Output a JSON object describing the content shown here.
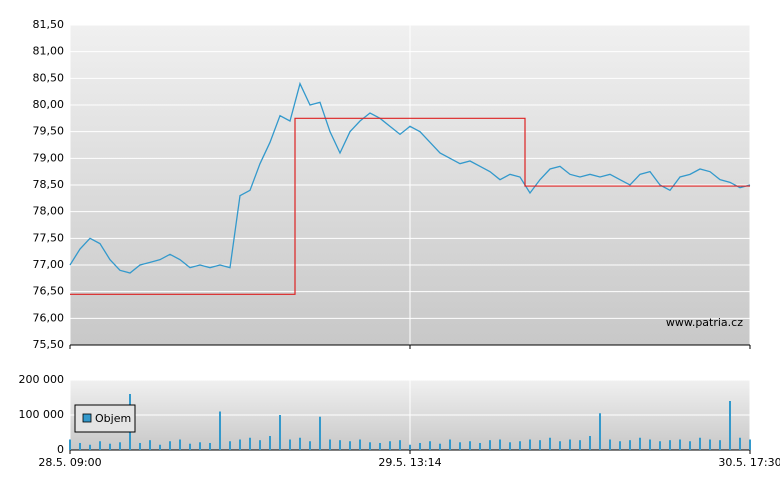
{
  "chart_data": [
    {
      "type": "line",
      "annotation": "www.patria.cz",
      "x": [
        0,
        1,
        2,
        3,
        4,
        5,
        6,
        7,
        8,
        9,
        10,
        11,
        12,
        13,
        14,
        15,
        16,
        17,
        18,
        19,
        20,
        21,
        22,
        23,
        24,
        25,
        26,
        27,
        28,
        29,
        30,
        31,
        32,
        33,
        34,
        35,
        36,
        37,
        38,
        39,
        40,
        41,
        42,
        43,
        44,
        45,
        46,
        47,
        48,
        49,
        50,
        51,
        52,
        53,
        54,
        55,
        56,
        57,
        58,
        59,
        60,
        61,
        62,
        63,
        64,
        65,
        66,
        67,
        68
      ],
      "xlim": [
        0,
        68
      ],
      "xticks": [
        0,
        34,
        68
      ],
      "ylim": [
        75.5,
        81.5
      ],
      "yticks": [
        {
          "value": 75.5,
          "label": "75,50"
        },
        {
          "value": 76,
          "label": "76,00"
        },
        {
          "value": 76.5,
          "label": "76,50"
        },
        {
          "value": 77,
          "label": "77,00"
        },
        {
          "value": 77.5,
          "label": "77,50"
        },
        {
          "value": 78,
          "label": "78,00"
        },
        {
          "value": 78.5,
          "label": "78,50"
        },
        {
          "value": 79,
          "label": "79,00"
        },
        {
          "value": 79.5,
          "label": "79,50"
        },
        {
          "value": 80,
          "label": "80,00"
        },
        {
          "value": 80.5,
          "label": "80,50"
        },
        {
          "value": 81,
          "label": "81,00"
        },
        {
          "value": 81.5,
          "label": "81,50"
        }
      ],
      "grid": true,
      "series": [
        {
          "color": "#3399cc",
          "step": false,
          "values": [
            77.0,
            77.3,
            77.5,
            77.4,
            77.1,
            76.9,
            76.85,
            77.0,
            77.05,
            77.1,
            77.2,
            77.1,
            76.95,
            77.0,
            76.95,
            77.0,
            76.95,
            78.3,
            78.4,
            78.9,
            79.3,
            79.8,
            79.7,
            80.4,
            80.0,
            80.05,
            79.5,
            79.1,
            79.5,
            79.7,
            79.85,
            79.75,
            79.6,
            79.45,
            79.6,
            79.5,
            79.3,
            79.1,
            79.0,
            78.9,
            78.95,
            78.85,
            78.75,
            78.6,
            78.7,
            78.65,
            78.35,
            78.6,
            78.8,
            78.85,
            78.7,
            78.65,
            78.7,
            78.65,
            78.7,
            78.6,
            78.5,
            78.7,
            78.75,
            78.5,
            78.4,
            78.65,
            78.7,
            78.8,
            78.75,
            78.6,
            78.55,
            78.45,
            78.5
          ]
        },
        {
          "color": "#dd2222",
          "step": true,
          "values": [
            76.45,
            76.45,
            76.45,
            76.45,
            76.45,
            76.45,
            76.45,
            76.45,
            76.45,
            76.45,
            76.45,
            76.45,
            76.45,
            76.45,
            76.45,
            76.45,
            76.45,
            76.45,
            76.45,
            76.45,
            76.45,
            76.45,
            76.45,
            79.75,
            79.75,
            79.75,
            79.75,
            79.75,
            79.75,
            79.75,
            79.75,
            79.75,
            79.75,
            79.75,
            79.75,
            79.75,
            79.75,
            79.75,
            79.75,
            79.75,
            79.75,
            79.75,
            79.75,
            79.75,
            79.75,
            79.75,
            78.48,
            78.48,
            78.48,
            78.48,
            78.48,
            78.48,
            78.48,
            78.48,
            78.48,
            78.48,
            78.48,
            78.48,
            78.48,
            78.48,
            78.48,
            78.48,
            78.48,
            78.48,
            78.48,
            78.48,
            78.48,
            78.48,
            78.48
          ]
        }
      ]
    },
    {
      "type": "bar",
      "x": [
        0,
        1,
        2,
        3,
        4,
        5,
        6,
        7,
        8,
        9,
        10,
        11,
        12,
        13,
        14,
        15,
        16,
        17,
        18,
        19,
        20,
        21,
        22,
        23,
        24,
        25,
        26,
        27,
        28,
        29,
        30,
        31,
        32,
        33,
        34,
        35,
        36,
        37,
        38,
        39,
        40,
        41,
        42,
        43,
        44,
        45,
        46,
        47,
        48,
        49,
        50,
        51,
        52,
        53,
        54,
        55,
        56,
        57,
        58,
        59,
        60,
        61,
        62,
        63,
        64,
        65,
        66,
        67,
        68
      ],
      "xlim": [
        0,
        68
      ],
      "xticks": [
        {
          "value": 0,
          "label": "28.5. 09:00"
        },
        {
          "value": 34,
          "label": "29.5. 13:14"
        },
        {
          "value": 68,
          "label": "30.5. 17:30"
        }
      ],
      "ylim": [
        0,
        200000
      ],
      "yticks": [
        0,
        {
          "value": 100000,
          "label": "100 000"
        },
        {
          "value": 200000,
          "label": "200 000"
        }
      ],
      "grid": true,
      "series": [
        {
          "name": "Objem",
          "color": "#3399cc",
          "values": [
            30000,
            20000,
            15000,
            25000,
            18000,
            22000,
            160000,
            20000,
            28000,
            15000,
            25000,
            30000,
            18000,
            22000,
            20000,
            110000,
            25000,
            30000,
            35000,
            28000,
            40000,
            100000,
            30000,
            35000,
            25000,
            95000,
            30000,
            28000,
            25000,
            30000,
            22000,
            20000,
            25000,
            28000,
            15000,
            20000,
            25000,
            18000,
            30000,
            22000,
            25000,
            20000,
            28000,
            30000,
            22000,
            25000,
            30000,
            28000,
            35000,
            25000,
            30000,
            28000,
            40000,
            105000,
            30000,
            25000,
            28000,
            35000,
            30000,
            25000,
            28000,
            30000,
            25000,
            35000,
            30000,
            28000,
            140000,
            35000,
            30000
          ]
        }
      ]
    }
  ]
}
